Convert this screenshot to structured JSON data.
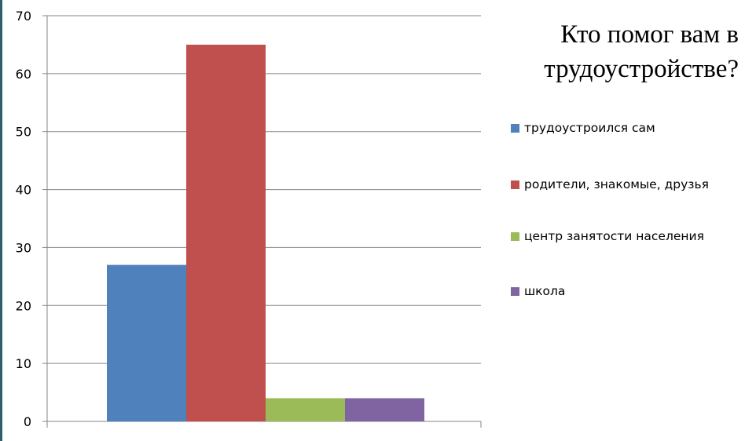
{
  "chart_data": {
    "type": "bar",
    "title": "Кто помог вам в трудоустройстве?",
    "ylim": [
      0,
      70
    ],
    "yticks": [
      0,
      10,
      20,
      30,
      40,
      50,
      60,
      70
    ],
    "grid": true,
    "legend_position": "right",
    "series": [
      {
        "name": "трудоустроился сам",
        "value": 27,
        "color": "#4f81bd"
      },
      {
        "name": "родители,  знакомые, друзья",
        "value": 65,
        "color": "#c0504d"
      },
      {
        "name": "центр занятости населения",
        "value": 4,
        "color": "#9bbb59"
      },
      {
        "name": "школа",
        "value": 4,
        "color": "#8064a2"
      }
    ]
  }
}
